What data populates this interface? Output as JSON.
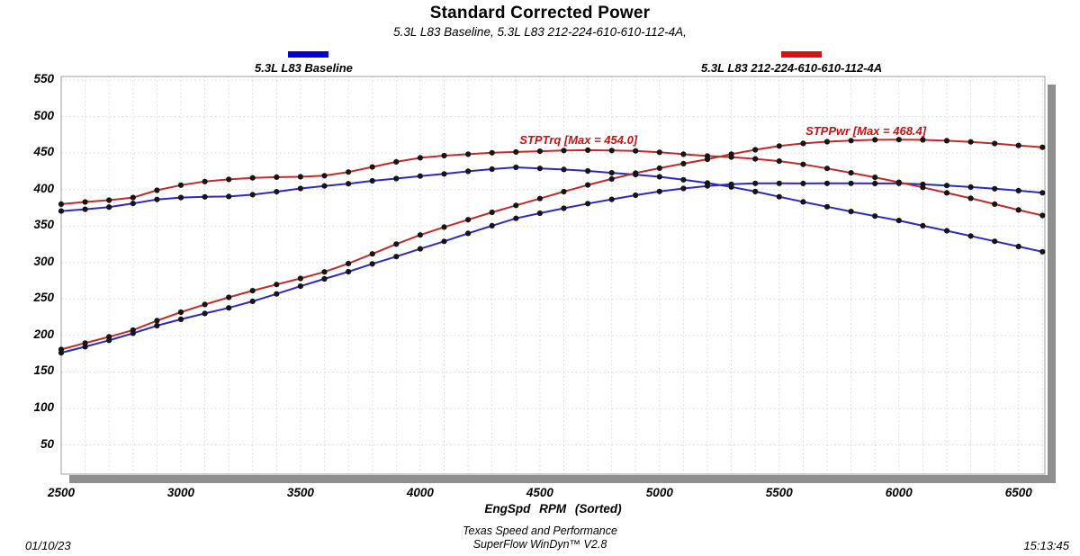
{
  "header": {
    "title": "Standard Corrected Power",
    "subtitle": "5.3L L83 Baseline, 5.3L L83 212-224-610-610-112-4A,"
  },
  "legend": [
    {
      "label": "5.3L L83 Baseline",
      "color": "#0202d6"
    },
    {
      "label": "5.3L L83 212-224-610-610-112-4A",
      "color": "#d61212"
    }
  ],
  "footer": {
    "date": "01/10/23",
    "facility": "Texas Speed and Performance",
    "software": "SuperFlow WinDyn™ V2.8",
    "time": "15:13:45"
  },
  "chart_data": {
    "type": "line",
    "title": "Standard Corrected Power",
    "xlabel": "EngSpd  RPM   (Sorted)",
    "ylabel": "",
    "grid": true,
    "xlim": [
      2500,
      6610
    ],
    "ylim": [
      10,
      555
    ],
    "x_ticks": [
      2500,
      3000,
      3500,
      4000,
      4500,
      5000,
      5500,
      6000,
      6500
    ],
    "y_ticks": [
      50,
      100,
      150,
      200,
      250,
      300,
      350,
      400,
      450,
      500,
      550
    ],
    "x_start": 2500,
    "x_step": 100,
    "colors": {
      "baseline": "#2a2ac2",
      "modified": "#c22a2a",
      "marker": "#151515",
      "grid": "#d9d9d9",
      "frame": "#9c9c9c",
      "shadow": "#8f8f8f",
      "annotation": "#cc1111"
    },
    "annotations": [
      {
        "text": "STPTrq [Max = 454.0]",
        "rpm": 4415,
        "value": 477
      },
      {
        "text": "STPPwr [Max = 468.4]",
        "rpm": 5610,
        "value": 489.5
      }
    ],
    "series": [
      {
        "name": "STPTrq 5.3L L83 Baseline",
        "group": "baseline",
        "unit": "lb-ft",
        "values": [
          370.5,
          373,
          376,
          381,
          386.5,
          389,
          390,
          390.5,
          393,
          397,
          401.5,
          405,
          408,
          412,
          415,
          418.5,
          421.5,
          425,
          428,
          430.5,
          429,
          427.5,
          425.5,
          423,
          420.5,
          417.5,
          413.5,
          409,
          403.6,
          397.3,
          390.1,
          383.1,
          376.4,
          369.9,
          363.6,
          357.6,
          350.5,
          343.5,
          336.4,
          329.1,
          322,
          314.8
        ]
      },
      {
        "name": "STPPwr 5.3L L83 Baseline",
        "group": "baseline",
        "unit": "hp",
        "values": [
          176.3,
          184.6,
          193.3,
          203.1,
          213.4,
          222.2,
          230.2,
          237.9,
          246.9,
          257.0,
          267.6,
          277.6,
          287.4,
          298.1,
          308.2,
          318.7,
          329.0,
          339.9,
          350.4,
          360.6,
          367.6,
          374.4,
          380.8,
          386.6,
          392.3,
          397.4,
          401.5,
          405.0,
          407.3,
          408.5,
          408.5,
          408.4,
          408.5,
          408.5,
          408.4,
          408.5,
          407.1,
          405.5,
          403.5,
          401.1,
          398.5,
          395.6
        ]
      },
      {
        "name": "STPTrq 5.3L L83 212-224-610-610-112-4A",
        "group": "modified",
        "unit": "lb-ft",
        "values": [
          380,
          383,
          385.5,
          389,
          399,
          406,
          411,
          414,
          416,
          417,
          417.5,
          419,
          424,
          431,
          438,
          443.5,
          446.5,
          448.5,
          450.5,
          451.5,
          452.5,
          453.5,
          454.0,
          453.5,
          453,
          451,
          448.5,
          446,
          444.5,
          442,
          439,
          434.5,
          429,
          423,
          416.8,
          410,
          403,
          395.5,
          388,
          380,
          372,
          364.5
        ]
      },
      {
        "name": "STPPwr 5.3L L83 212-224-610-610-112-4A",
        "group": "modified",
        "unit": "hp",
        "values": [
          180.9,
          189.6,
          198.2,
          207.4,
          220.3,
          231.9,
          242.6,
          252.3,
          261.4,
          269.9,
          278.2,
          287.2,
          298.7,
          311.9,
          325.3,
          337.8,
          348.6,
          358.7,
          368.8,
          378.3,
          387.7,
          397.2,
          406.3,
          414.5,
          422.6,
          429.4,
          435.5,
          441.6,
          448.6,
          454.5,
          459.7,
          463.3,
          465.6,
          467.1,
          468.2,
          468.4,
          468.1,
          466.9,
          465.4,
          463.1,
          460.4,
          458.0
        ]
      }
    ]
  }
}
